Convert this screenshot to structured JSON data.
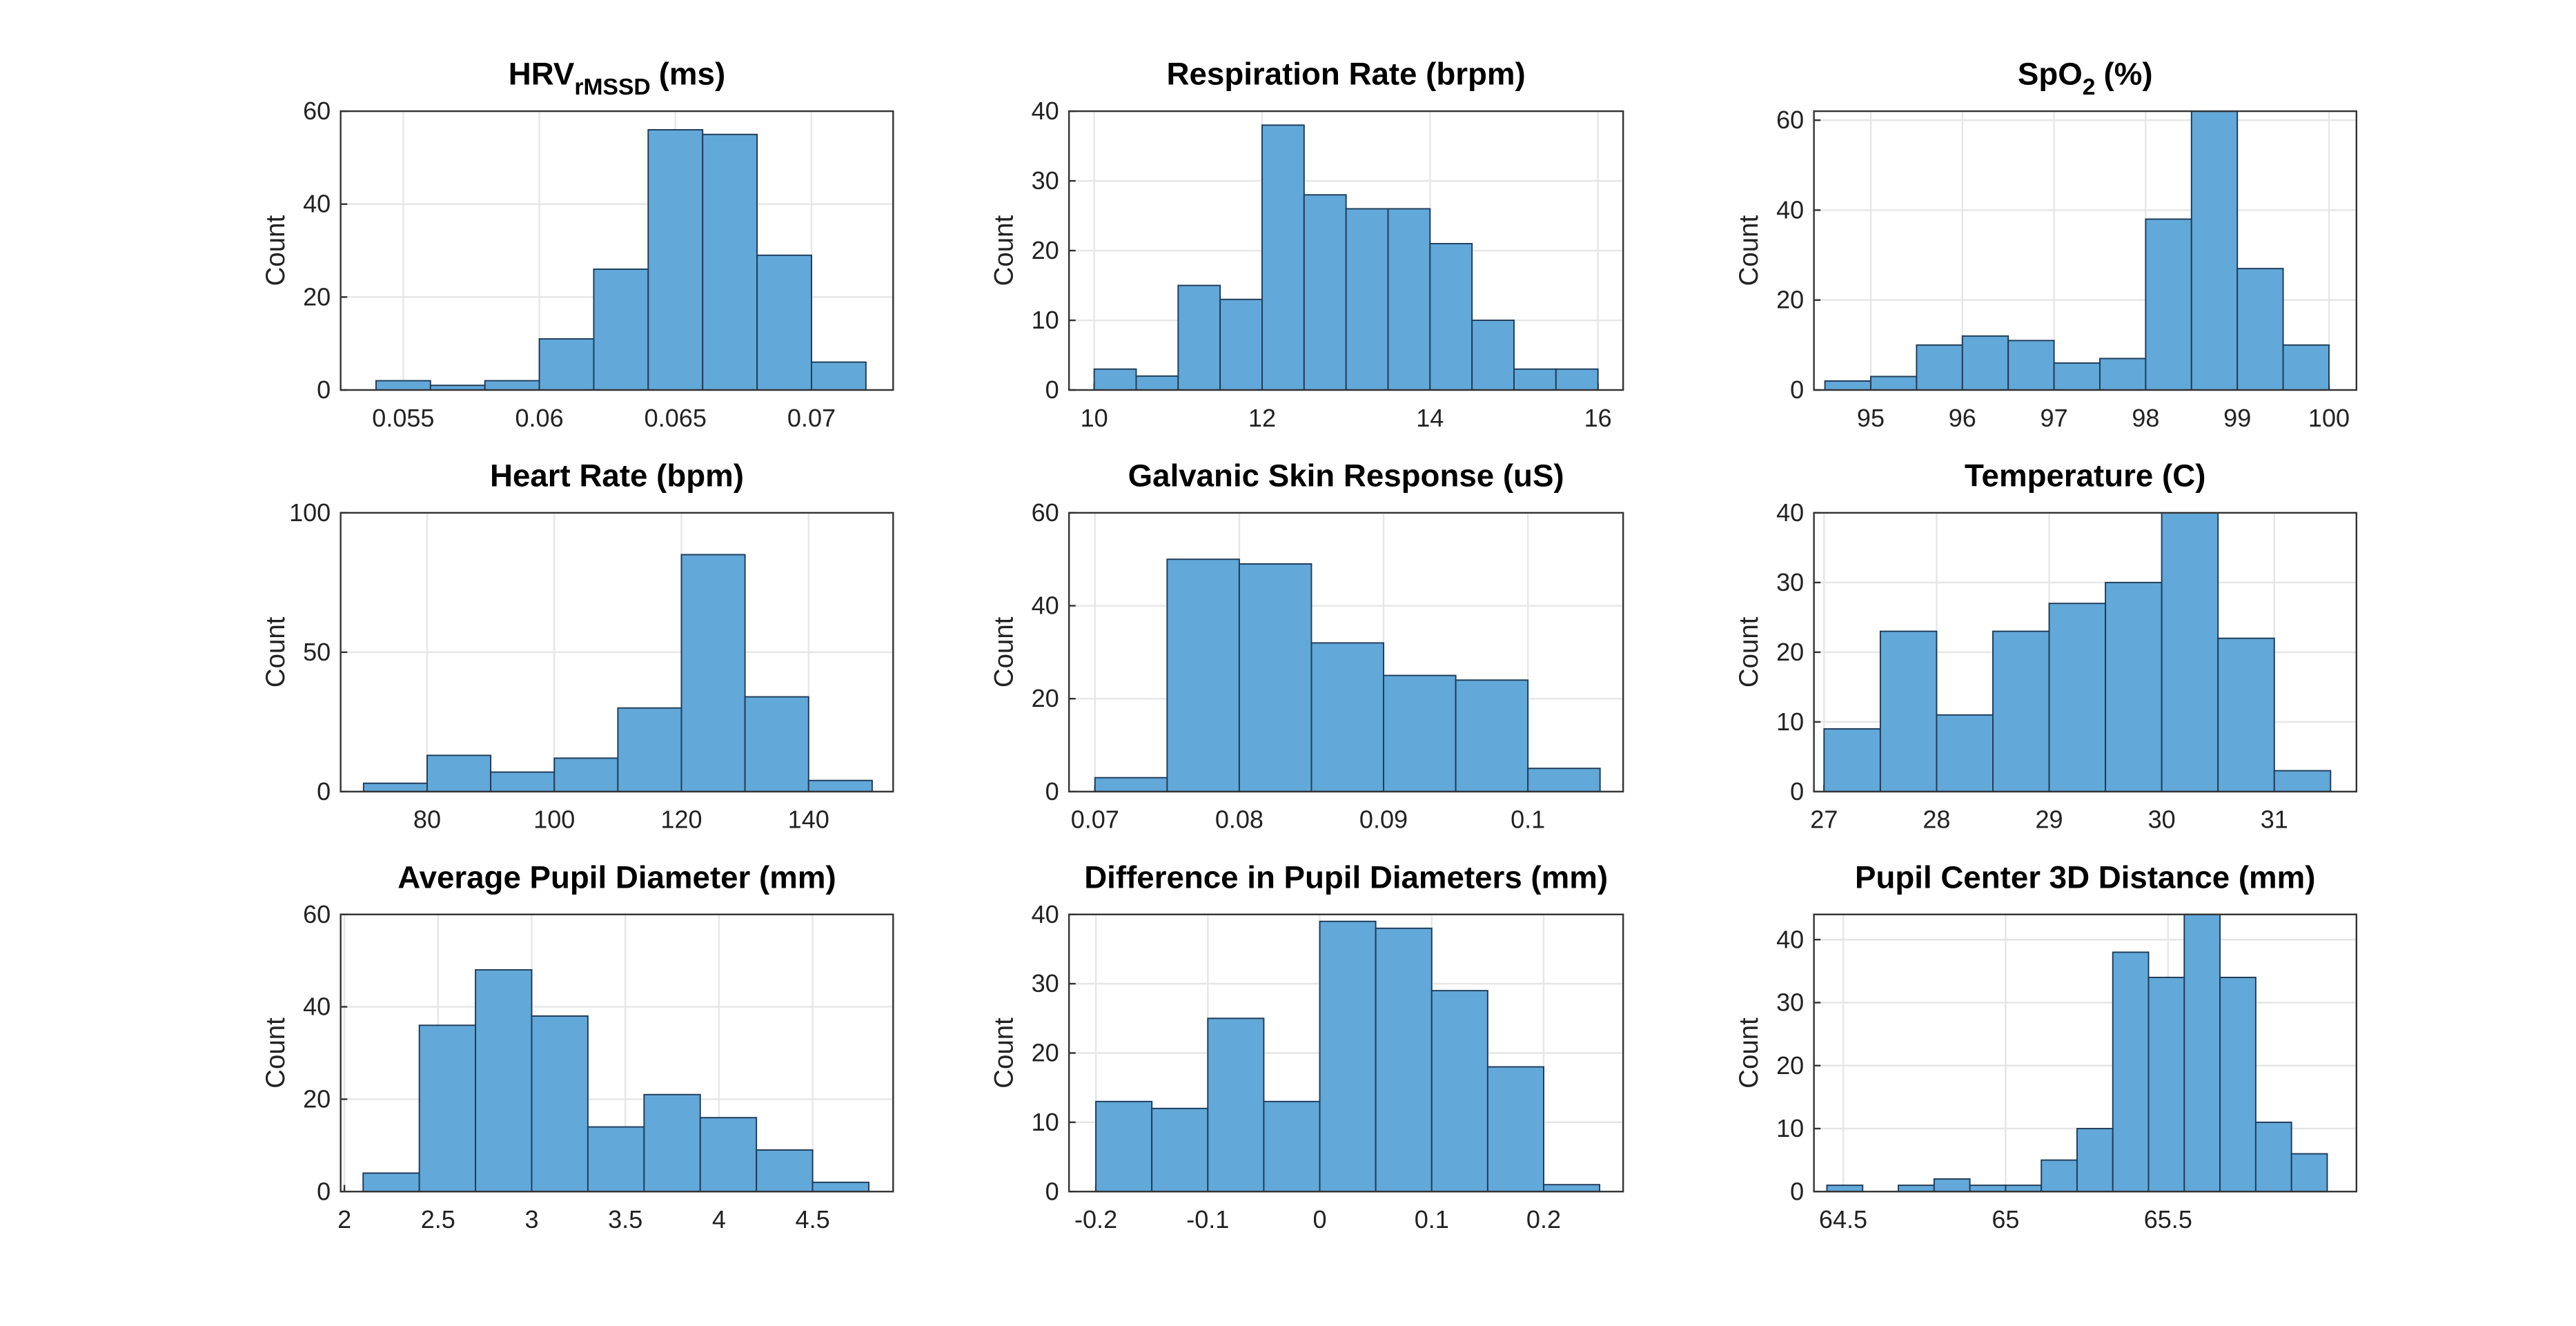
{
  "chart_data": [
    {
      "type": "histogram",
      "title": "HRV",
      "title_sub": "rMSSD",
      "title_suffix": "(ms)",
      "ylabel": "Count",
      "bins": [
        0.054,
        0.056,
        0.058,
        0.06,
        0.062,
        0.064,
        0.066,
        0.068,
        0.07,
        0.072
      ],
      "counts": [
        2,
        1,
        2,
        11,
        26,
        56,
        55,
        29,
        6
      ],
      "xlim": [
        0.0527,
        0.073
      ],
      "xticks": [
        0.055,
        0.06,
        0.065,
        0.07
      ],
      "ylim": [
        0,
        60
      ],
      "yticks": [
        0,
        20,
        40,
        60
      ],
      "color": "#62a8d9",
      "grid": true
    },
    {
      "type": "histogram",
      "title": "Respiration Rate (brpm)",
      "ylabel": "Count",
      "bins": [
        10,
        10.5,
        11,
        11.5,
        12,
        12.5,
        13,
        13.5,
        14,
        14.5,
        15,
        15.5,
        16
      ],
      "counts": [
        3,
        2,
        15,
        13,
        38,
        28,
        26,
        26,
        21,
        10,
        3,
        3
      ],
      "xlim": [
        9.7,
        16.3
      ],
      "xticks": [
        10,
        12,
        14,
        16
      ],
      "ylim": [
        0,
        40
      ],
      "yticks": [
        0,
        10,
        20,
        30,
        40
      ],
      "color": "#62a8d9",
      "grid": true
    },
    {
      "type": "histogram",
      "title": "SpO",
      "title_sub": "2",
      "title_suffix": "(%)",
      "ylabel": "Count",
      "bins": [
        94.5,
        95,
        95.5,
        96,
        96.5,
        97,
        97.5,
        98,
        98.5,
        99,
        99.5,
        100
      ],
      "counts": [
        2,
        3,
        10,
        12,
        11,
        6,
        7,
        38,
        62,
        27,
        10
      ],
      "xlim": [
        94.38,
        100.3
      ],
      "xticks": [
        95,
        96,
        97,
        98,
        99,
        100
      ],
      "ylim": [
        0,
        62
      ],
      "yticks": [
        0,
        20,
        40,
        60
      ],
      "color": "#62a8d9",
      "grid": true
    },
    {
      "type": "histogram",
      "title": "Heart Rate (bpm)",
      "ylabel": "Count",
      "bins": [
        70,
        80,
        90,
        100,
        110,
        120,
        130,
        140,
        150
      ],
      "counts": [
        3,
        13,
        7,
        12,
        30,
        85,
        34,
        4
      ],
      "xlim": [
        66.4,
        153.3
      ],
      "xticks": [
        80,
        100,
        120,
        140
      ],
      "ylim": [
        0,
        100
      ],
      "yticks": [
        0,
        50,
        100
      ],
      "color": "#62a8d9",
      "grid": true
    },
    {
      "type": "histogram",
      "title": "Galvanic Skin Response (uS)",
      "ylabel": "Count",
      "bins": [
        0.07,
        0.075,
        0.08,
        0.085,
        0.09,
        0.095,
        0.1,
        0.105
      ],
      "counts": [
        3,
        50,
        49,
        32,
        25,
        24,
        5
      ],
      "xlim": [
        0.0682,
        0.1066
      ],
      "xticks": [
        0.07,
        0.08,
        0.09,
        0.1
      ],
      "ylim": [
        0,
        60
      ],
      "yticks": [
        0,
        20,
        40,
        60
      ],
      "color": "#62a8d9",
      "grid": true
    },
    {
      "type": "histogram",
      "title": "Temperature (C)",
      "ylabel": "Count",
      "bins": [
        27,
        27.5,
        28,
        28.5,
        29,
        29.5,
        30,
        30.5,
        31,
        31.5
      ],
      "counts": [
        9,
        23,
        11,
        23,
        27,
        30,
        40,
        22,
        3
      ],
      "xlim": [
        26.91,
        31.73
      ],
      "xticks": [
        27,
        28,
        29,
        30,
        31
      ],
      "ylim": [
        0,
        40
      ],
      "yticks": [
        0,
        10,
        20,
        30,
        40
      ],
      "color": "#62a8d9",
      "grid": true
    },
    {
      "type": "histogram",
      "title": "Average Pupil Diameter (mm)",
      "ylabel": "Count",
      "bins": [
        2.1,
        2.4,
        2.7,
        3,
        3.3,
        3.6,
        3.9,
        4.2,
        4.5,
        4.8
      ],
      "counts": [
        4,
        36,
        48,
        38,
        14,
        21,
        16,
        9,
        2
      ],
      "xlim": [
        1.98,
        4.93
      ],
      "xticks": [
        2,
        2.5,
        3,
        3.5,
        4,
        4.5
      ],
      "ylim": [
        0,
        60
      ],
      "yticks": [
        0,
        20,
        40,
        60
      ],
      "color": "#62a8d9",
      "grid": true
    },
    {
      "type": "histogram",
      "title": "Difference in Pupil Diameters (mm)",
      "ylabel": "Count",
      "bins": [
        -0.2,
        -0.15,
        -0.1,
        -0.05,
        0,
        0.05,
        0.1,
        0.15,
        0.2,
        0.25
      ],
      "counts": [
        13,
        12,
        25,
        13,
        39,
        38,
        29,
        18,
        1
      ],
      "xlim": [
        -0.224,
        0.271
      ],
      "xticks": [
        -0.2,
        -0.1,
        0,
        0.1,
        0.2
      ],
      "ylim": [
        0,
        40
      ],
      "yticks": [
        0,
        10,
        20,
        30,
        40
      ],
      "color": "#62a8d9",
      "grid": true
    },
    {
      "type": "histogram",
      "title": "Pupil Center 3D Distance (mm)",
      "ylabel": "Count",
      "bins": [
        64.45,
        64.56,
        64.67,
        64.78,
        64.89,
        65,
        65.11,
        65.22,
        65.33,
        65.44,
        65.55,
        65.66,
        65.77,
        65.88,
        65.99
      ],
      "counts": [
        1,
        0,
        1,
        2,
        1,
        1,
        5,
        10,
        38,
        34,
        44,
        34,
        11,
        6
      ],
      "xlim": [
        64.41,
        66.08
      ],
      "xticks": [
        64.5,
        65,
        65.5
      ],
      "ylim": [
        0,
        44
      ],
      "yticks": [
        0,
        10,
        20,
        30,
        40
      ],
      "color": "#62a8d9",
      "grid": true
    }
  ]
}
